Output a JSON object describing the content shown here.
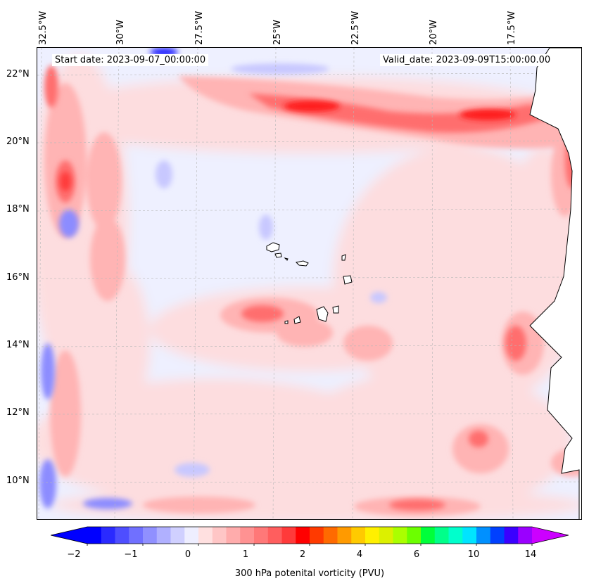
{
  "map": {
    "start_label": "Start date: 2023-09-07_00:00:00",
    "valid_label": "Valid_date: 2023-09-09T15:00:00.00",
    "lon_labels": [
      "32.5°W",
      "30°W",
      "27.5°W",
      "25°W",
      "22.5°W",
      "20°W",
      "17.5°W"
    ],
    "lat_labels": [
      "22°N",
      "20°N",
      "18°N",
      "16°N",
      "14°N",
      "12°N",
      "10°N"
    ],
    "colors": {
      "pos_strong": "#ff1a1a",
      "pos_mid": "#ff6e6e",
      "pos_light": "#ffb4b4",
      "pos_faint": "#ffdcdc",
      "neg_light": "#c8c8ff",
      "neg_mid": "#8c8cff",
      "neg_strong": "#2020ff",
      "background": "#eef0ff",
      "land": "#ffffff",
      "coast": "#000000"
    }
  },
  "colorbar": {
    "label": "300 hPa potenital vorticity (PVU)",
    "ticks": [
      "−2",
      "−1",
      "0",
      "1",
      "2",
      "4",
      "6",
      "10",
      "14"
    ],
    "colors": [
      "#0000ff",
      "#2a2aff",
      "#4e4eff",
      "#7070ff",
      "#9090ff",
      "#b0b0ff",
      "#d0d0ff",
      "#eeeeff",
      "#ffe0e0",
      "#ffc6c6",
      "#ffacac",
      "#ff9292",
      "#ff7878",
      "#ff5e5e",
      "#ff3a3a",
      "#ff0000",
      "#ff3a00",
      "#ff6a00",
      "#ff9a00",
      "#ffca00",
      "#fff000",
      "#dcf000",
      "#aaff00",
      "#6cff00",
      "#00ff3a",
      "#00ff8a",
      "#00ffcc",
      "#00e4ff",
      "#0090ff",
      "#0040ff",
      "#3a00ff",
      "#9a00ff"
    ],
    "under_color": "#0000ff",
    "over_color": "#cc00ff"
  }
}
